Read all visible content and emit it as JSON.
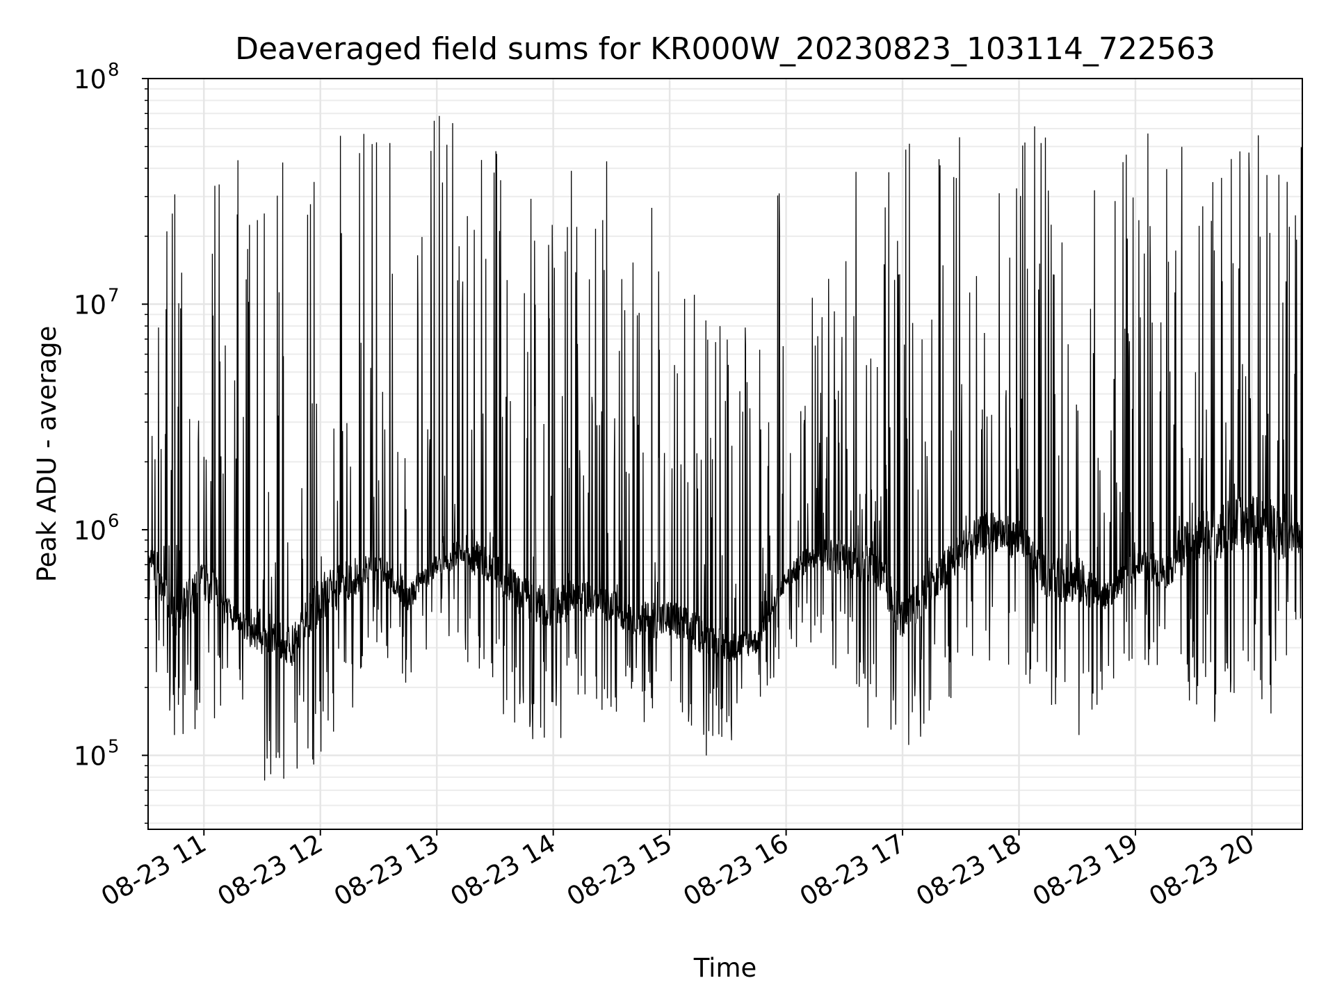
{
  "chart_data": {
    "type": "line",
    "title": "Deaveraged field sums for KR000W_20230823_103114_722563",
    "xlabel": "Time",
    "ylabel": "Peak ADU - average",
    "yscale": "log",
    "ylim": [
      47000,
      100000000
    ],
    "xlim": [
      "2023-08-23T10:31:14",
      "2023-08-23T20:26:00"
    ],
    "grid": true,
    "line_color": "#000000",
    "y_ticks": [
      {
        "base": "10",
        "exp": "5",
        "value": 100000
      },
      {
        "base": "10",
        "exp": "6",
        "value": 1000000
      },
      {
        "base": "10",
        "exp": "7",
        "value": 10000000
      },
      {
        "base": "10",
        "exp": "8",
        "value": 100000000
      }
    ],
    "x_ticks": [
      {
        "label": "08-23 11",
        "time": "2023-08-23T11:00:00"
      },
      {
        "label": "08-23 12",
        "time": "2023-08-23T12:00:00"
      },
      {
        "label": "08-23 13",
        "time": "2023-08-23T13:00:00"
      },
      {
        "label": "08-23 14",
        "time": "2023-08-23T14:00:00"
      },
      {
        "label": "08-23 15",
        "time": "2023-08-23T15:00:00"
      },
      {
        "label": "08-23 16",
        "time": "2023-08-23T16:00:00"
      },
      {
        "label": "08-23 17",
        "time": "2023-08-23T17:00:00"
      },
      {
        "label": "08-23 18",
        "time": "2023-08-23T18:00:00"
      },
      {
        "label": "08-23 19",
        "time": "2023-08-23T19:00:00"
      },
      {
        "label": "08-23 20",
        "time": "2023-08-23T20:00:00"
      }
    ],
    "series": [
      {
        "x": [
          "2023-08-23T10:31:14",
          "2023-08-23T10:45:00",
          "2023-08-23T11:00:00",
          "2023-08-23T11:15:00",
          "2023-08-23T11:30:00",
          "2023-08-23T11:45:00",
          "2023-08-23T12:00:00",
          "2023-08-23T12:15:00",
          "2023-08-23T12:30:00",
          "2023-08-23T12:45:00",
          "2023-08-23T13:00:00",
          "2023-08-23T13:15:00",
          "2023-08-23T13:30:00",
          "2023-08-23T13:45:00",
          "2023-08-23T14:00:00",
          "2023-08-23T14:15:00",
          "2023-08-23T14:30:00",
          "2023-08-23T14:45:00",
          "2023-08-23T15:00:00",
          "2023-08-23T15:15:00",
          "2023-08-23T15:30:00",
          "2023-08-23T15:45:00",
          "2023-08-23T16:00:00",
          "2023-08-23T16:15:00",
          "2023-08-23T16:30:00",
          "2023-08-23T16:45:00",
          "2023-08-23T17:00:00",
          "2023-08-23T17:15:00",
          "2023-08-23T17:30:00",
          "2023-08-23T17:45:00",
          "2023-08-23T18:00:00",
          "2023-08-23T18:15:00",
          "2023-08-23T18:30:00",
          "2023-08-23T18:45:00",
          "2023-08-23T19:00:00",
          "2023-08-23T19:15:00",
          "2023-08-23T19:30:00",
          "2023-08-23T19:45:00",
          "2023-08-23T20:00:00",
          "2023-08-23T20:15:00",
          "2023-08-23T20:26:00"
        ],
        "y": [
          800000,
          400000,
          600000,
          400000,
          350000,
          300000,
          500000,
          600000,
          700000,
          500000,
          700000,
          800000,
          650000,
          500000,
          450000,
          500000,
          450000,
          400000,
          400000,
          350000,
          300000,
          320000,
          600000,
          800000,
          750000,
          700000,
          400000,
          550000,
          800000,
          1000000,
          900000,
          600000,
          600000,
          500000,
          700000,
          650000,
          900000,
          1000000,
          1100000,
          1000000,
          900000
        ],
        "min": [
          300000,
          100000,
          120000,
          150000,
          70000,
          75000,
          90000,
          150000,
          300000,
          200000,
          350000,
          250000,
          160000,
          120000,
          110000,
          150000,
          140000,
          120000,
          100000,
          90000,
          110000,
          130000,
          300000,
          300000,
          200000,
          120000,
          100000,
          120000,
          180000,
          250000,
          220000,
          150000,
          110000,
          200000,
          250000,
          200000,
          150000,
          130000,
          200000,
          120000,
          400000
        ],
        "max": [
          5000000,
          50000000,
          60000000,
          45000000,
          60000000,
          60000000,
          65000000,
          70000000,
          65000000,
          50000000,
          70000000,
          65000000,
          55000000,
          60000000,
          60000000,
          55000000,
          50000000,
          40000000,
          30000000,
          10000000,
          8000000,
          10000000,
          60000000,
          40000000,
          45000000,
          35000000,
          50000000,
          70000000,
          60000000,
          45000000,
          70000000,
          55000000,
          60000000,
          30000000,
          60000000,
          60000000,
          55000000,
          60000000,
          70000000,
          65000000,
          60000000
        ]
      }
    ]
  }
}
